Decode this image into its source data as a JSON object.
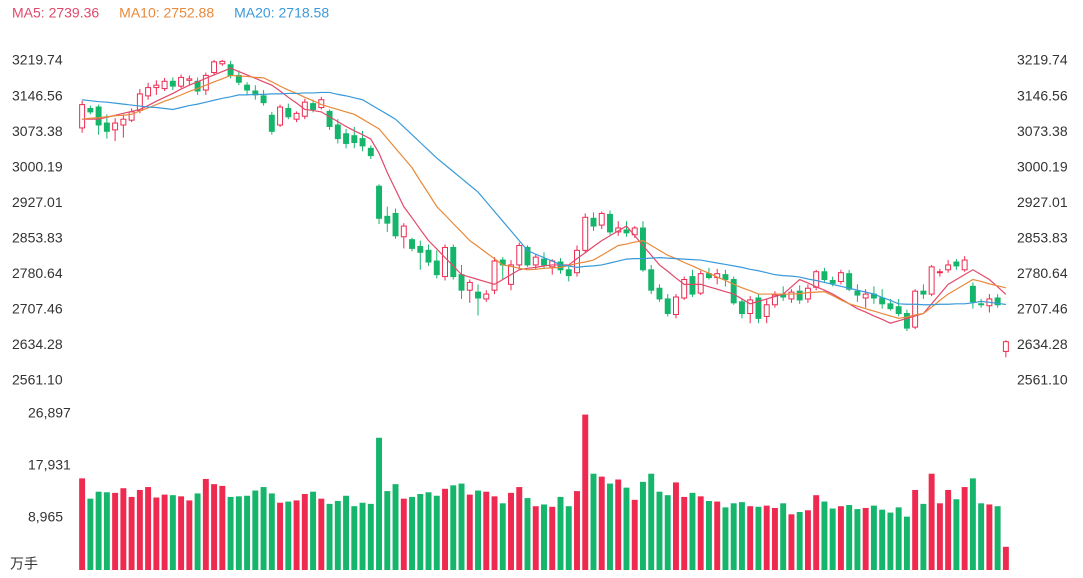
{
  "chart_data": {
    "type": "candlestick",
    "up_color": "#ee2a50",
    "down_color": "#15b56b",
    "lines": [
      {
        "label": "MA5: 2739.36",
        "color": "#e2486a",
        "values": [
          3100,
          3100,
          3100,
          3104,
          3108,
          3112,
          3116,
          3120,
          3128,
          3137,
          3145,
          3153,
          3162,
          3170,
          3177,
          3184,
          3191,
          3198,
          3205,
          3198,
          3191,
          3184,
          3177,
          3170,
          3158,
          3145,
          3133,
          3120,
          3118,
          3115,
          3105,
          3095,
          3085,
          3076,
          3068,
          3059,
          3030,
          2990,
          2955,
          2920,
          2897,
          2873,
          2850,
          2833,
          2815,
          2798,
          2780,
          2775,
          2770,
          2765,
          2760,
          2770,
          2780,
          2790,
          2793,
          2795,
          2798,
          2800,
          2800,
          2800,
          2813,
          2825,
          2838,
          2850,
          2860,
          2870,
          2880,
          2860,
          2840,
          2820,
          2800,
          2787,
          2773,
          2760,
          2760,
          2760,
          2755,
          2750,
          2745,
          2740,
          2730,
          2720,
          2725,
          2730,
          2735,
          2740,
          2755,
          2770,
          2763,
          2755,
          2748,
          2740,
          2730,
          2720,
          2710,
          2703,
          2695,
          2688,
          2680,
          2685,
          2690,
          2695,
          2700,
          2720,
          2740,
          2760,
          2770,
          2780,
          2790,
          2780,
          2770,
          2755,
          2739.36
        ]
      },
      {
        "label": "MA10: 2752.88",
        "color": "#e8893a",
        "values": [
          3100,
          3102,
          3103,
          3105,
          3107,
          3108,
          3110,
          3117,
          3123,
          3130,
          3137,
          3143,
          3150,
          3157,
          3163,
          3170,
          3177,
          3183,
          3190,
          3189,
          3188,
          3186,
          3185,
          3177,
          3168,
          3160,
          3153,
          3145,
          3138,
          3130,
          3125,
          3120,
          3115,
          3110,
          3100,
          3090,
          3080,
          3060,
          3040,
          3020,
          3000,
          2973,
          2947,
          2920,
          2903,
          2885,
          2868,
          2850,
          2838,
          2825,
          2813,
          2800,
          2797,
          2793,
          2790,
          2791,
          2793,
          2794,
          2795,
          2799,
          2803,
          2806,
          2810,
          2820,
          2830,
          2840,
          2843,
          2847,
          2850,
          2840,
          2830,
          2820,
          2813,
          2805,
          2798,
          2790,
          2783,
          2775,
          2768,
          2760,
          2753,
          2747,
          2740,
          2740,
          2740,
          2740,
          2740,
          2741,
          2743,
          2744,
          2745,
          2737,
          2728,
          2720,
          2715,
          2710,
          2705,
          2700,
          2695,
          2690,
          2693,
          2697,
          2700,
          2713,
          2727,
          2740,
          2750,
          2760,
          2770,
          2766,
          2761,
          2757,
          2752.88
        ]
      },
      {
        "label": "MA20: 2718.58",
        "color": "#3a9ad9",
        "values": [
          3140,
          3138,
          3136,
          3135,
          3133,
          3131,
          3129,
          3127,
          3125,
          3124,
          3122,
          3120,
          3124,
          3128,
          3131,
          3135,
          3139,
          3143,
          3146,
          3150,
          3150,
          3151,
          3151,
          3152,
          3152,
          3153,
          3153,
          3154,
          3154,
          3155,
          3155,
          3151,
          3148,
          3144,
          3140,
          3130,
          3120,
          3110,
          3100,
          3084,
          3068,
          3052,
          3036,
          3020,
          3006,
          2992,
          2978,
          2964,
          2950,
          2930,
          2910,
          2890,
          2870,
          2850,
          2830,
          2822,
          2815,
          2808,
          2800,
          2798,
          2795,
          2797,
          2798,
          2800,
          2804,
          2808,
          2812,
          2813,
          2813,
          2814,
          2815,
          2814,
          2813,
          2812,
          2811,
          2810,
          2807,
          2804,
          2801,
          2798,
          2795,
          2791,
          2788,
          2784,
          2780,
          2778,
          2777,
          2775,
          2771,
          2768,
          2764,
          2760,
          2756,
          2752,
          2748,
          2744,
          2740,
          2733,
          2727,
          2720,
          2719,
          2719,
          2718,
          2718,
          2719,
          2719,
          2720,
          2720,
          2722,
          2725,
          2723,
          2721,
          2718.58
        ]
      }
    ],
    "candles": [
      [
        3082,
        3138,
        3072,
        3130
      ],
      [
        3122,
        3128,
        3110,
        3115
      ],
      [
        3125,
        3130,
        3068,
        3088
      ],
      [
        3092,
        3110,
        3060,
        3075
      ],
      [
        3078,
        3102,
        3055,
        3092
      ],
      [
        3088,
        3110,
        3062,
        3100
      ],
      [
        3098,
        3122,
        3094,
        3115
      ],
      [
        3118,
        3162,
        3112,
        3152
      ],
      [
        3148,
        3175,
        3140,
        3165
      ],
      [
        3165,
        3180,
        3150,
        3170
      ],
      [
        3163,
        3185,
        3158,
        3178
      ],
      [
        3178,
        3186,
        3160,
        3168
      ],
      [
        3168,
        3192,
        3164,
        3186
      ],
      [
        3180,
        3190,
        3170,
        3183
      ],
      [
        3178,
        3186,
        3150,
        3158
      ],
      [
        3160,
        3196,
        3150,
        3190
      ],
      [
        3196,
        3222,
        3190,
        3218
      ],
      [
        3214,
        3222,
        3210,
        3219
      ],
      [
        3212,
        3220,
        3184,
        3190
      ],
      [
        3190,
        3200,
        3170,
        3176
      ],
      [
        3170,
        3176,
        3150,
        3160
      ],
      [
        3158,
        3170,
        3140,
        3150
      ],
      [
        3148,
        3160,
        3128,
        3134
      ],
      [
        3108,
        3115,
        3068,
        3075
      ],
      [
        3088,
        3130,
        3084,
        3125
      ],
      [
        3122,
        3132,
        3100,
        3105
      ],
      [
        3100,
        3116,
        3094,
        3112
      ],
      [
        3106,
        3142,
        3100,
        3135
      ],
      [
        3132,
        3140,
        3114,
        3120
      ],
      [
        3124,
        3146,
        3120,
        3140
      ],
      [
        3116,
        3120,
        3078,
        3085
      ],
      [
        3088,
        3100,
        3050,
        3060
      ],
      [
        3070,
        3080,
        3040,
        3050
      ],
      [
        3066,
        3084,
        3040,
        3052
      ],
      [
        3060,
        3076,
        3034,
        3045
      ],
      [
        3040,
        3046,
        3018,
        3025
      ],
      [
        2962,
        2966,
        2884,
        2896
      ],
      [
        2900,
        2920,
        2868,
        2886
      ],
      [
        2906,
        2916,
        2854,
        2860
      ],
      [
        2858,
        2886,
        2834,
        2880
      ],
      [
        2852,
        2856,
        2828,
        2834
      ],
      [
        2838,
        2850,
        2790,
        2826
      ],
      [
        2830,
        2842,
        2798,
        2806
      ],
      [
        2808,
        2830,
        2772,
        2780
      ],
      [
        2776,
        2842,
        2768,
        2836
      ],
      [
        2836,
        2842,
        2770,
        2776
      ],
      [
        2780,
        2800,
        2730,
        2748
      ],
      [
        2748,
        2770,
        2722,
        2764
      ],
      [
        2744,
        2760,
        2696,
        2732
      ],
      [
        2730,
        2748,
        2724,
        2740
      ],
      [
        2748,
        2816,
        2740,
        2808
      ],
      [
        2810,
        2816,
        2770,
        2800
      ],
      [
        2760,
        2810,
        2748,
        2800
      ],
      [
        2800,
        2846,
        2790,
        2840
      ],
      [
        2836,
        2840,
        2796,
        2800
      ],
      [
        2800,
        2822,
        2790,
        2816
      ],
      [
        2812,
        2826,
        2792,
        2800
      ],
      [
        2796,
        2812,
        2780,
        2808
      ],
      [
        2806,
        2814,
        2782,
        2790
      ],
      [
        2790,
        2800,
        2766,
        2778
      ],
      [
        2784,
        2840,
        2776,
        2830
      ],
      [
        2830,
        2906,
        2826,
        2898
      ],
      [
        2896,
        2908,
        2870,
        2880
      ],
      [
        2882,
        2910,
        2874,
        2906
      ],
      [
        2904,
        2912,
        2862,
        2868
      ],
      [
        2868,
        2890,
        2860,
        2876
      ],
      [
        2872,
        2890,
        2858,
        2866
      ],
      [
        2862,
        2880,
        2856,
        2876
      ],
      [
        2876,
        2890,
        2786,
        2790
      ],
      [
        2790,
        2800,
        2740,
        2748
      ],
      [
        2752,
        2760,
        2724,
        2730
      ],
      [
        2730,
        2740,
        2694,
        2700
      ],
      [
        2698,
        2740,
        2690,
        2734
      ],
      [
        2732,
        2776,
        2728,
        2770
      ],
      [
        2776,
        2790,
        2734,
        2740
      ],
      [
        2742,
        2788,
        2738,
        2782
      ],
      [
        2782,
        2794,
        2770,
        2774
      ],
      [
        2774,
        2792,
        2760,
        2782
      ],
      [
        2780,
        2790,
        2756,
        2770
      ],
      [
        2770,
        2776,
        2718,
        2722
      ],
      [
        2724,
        2730,
        2690,
        2700
      ],
      [
        2700,
        2736,
        2680,
        2728
      ],
      [
        2732,
        2740,
        2680,
        2690
      ],
      [
        2694,
        2730,
        2680,
        2718
      ],
      [
        2718,
        2746,
        2712,
        2738
      ],
      [
        2740,
        2756,
        2726,
        2734
      ],
      [
        2730,
        2750,
        2722,
        2744
      ],
      [
        2746,
        2758,
        2720,
        2728
      ],
      [
        2730,
        2760,
        2722,
        2752
      ],
      [
        2754,
        2790,
        2748,
        2786
      ],
      [
        2786,
        2794,
        2764,
        2770
      ],
      [
        2768,
        2776,
        2756,
        2762
      ],
      [
        2766,
        2790,
        2760,
        2784
      ],
      [
        2782,
        2790,
        2746,
        2750
      ],
      [
        2746,
        2760,
        2724,
        2738
      ],
      [
        2732,
        2750,
        2712,
        2740
      ],
      [
        2740,
        2756,
        2720,
        2732
      ],
      [
        2732,
        2750,
        2710,
        2720
      ],
      [
        2720,
        2730,
        2706,
        2710
      ],
      [
        2714,
        2730,
        2694,
        2700
      ],
      [
        2700,
        2708,
        2664,
        2670
      ],
      [
        2672,
        2750,
        2668,
        2746
      ],
      [
        2746,
        2760,
        2730,
        2740
      ],
      [
        2740,
        2800,
        2736,
        2796
      ],
      [
        2784,
        2792,
        2776,
        2786
      ],
      [
        2790,
        2810,
        2784,
        2800
      ],
      [
        2806,
        2812,
        2790,
        2798
      ],
      [
        2790,
        2818,
        2786,
        2810
      ],
      [
        2756,
        2764,
        2710,
        2724
      ],
      [
        2720,
        2730,
        2712,
        2718
      ],
      [
        2716,
        2740,
        2702,
        2730
      ],
      [
        2732,
        2740,
        2712,
        2718
      ],
      [
        2622,
        2645,
        2610,
        2642
      ]
    ],
    "ylim": [
      2561.1,
      3219.74
    ],
    "yticks": [
      {
        "value": 2561.1,
        "label": "2561.10"
      },
      2634.28,
      2707.46,
      2780.64,
      2853.83,
      2927.01,
      3000.19,
      3073.38,
      3146.56,
      3219.74
    ],
    "volume": {
      "values": [
        15800,
        12300,
        13500,
        13400,
        13300,
        14100,
        12600,
        13800,
        14300,
        12500,
        13000,
        12900,
        12700,
        12000,
        13200,
        15700,
        14800,
        14500,
        12600,
        12700,
        12800,
        13700,
        14300,
        13200,
        11600,
        11800,
        12000,
        13100,
        13500,
        12300,
        11400,
        11900,
        12800,
        11000,
        11600,
        11400,
        22800,
        13600,
        14800,
        12300,
        12600,
        13100,
        13400,
        12800,
        14000,
        14600,
        14900,
        13000,
        13700,
        13500,
        12700,
        11500,
        13300,
        14300,
        12400,
        11000,
        11300,
        10900,
        12600,
        11000,
        13600,
        26800,
        16600,
        16100,
        14900,
        15600,
        14200,
        12100,
        15200,
        16600,
        13500,
        12900,
        15100,
        12600,
        13300,
        12700,
        11900,
        11800,
        10800,
        11500,
        11700,
        11000,
        10900,
        11100,
        10700,
        11500,
        9600,
        10000,
        10300,
        12900,
        11800,
        10600,
        11000,
        11200,
        10500,
        10700,
        11100,
        10400,
        9900,
        10800,
        9200,
        13800,
        11400,
        16600,
        11500,
        13800,
        12200,
        14300,
        15800,
        11500,
        11300,
        11000,
        4000
      ],
      "ylim": [
        0,
        26897
      ],
      "yticks": [
        {
          "value": 8965,
          "label": "8,965"
        },
        {
          "value": 17931,
          "label": "17,931"
        },
        {
          "value": 26897,
          "label": "26,897"
        }
      ],
      "unit": "万手"
    }
  }
}
